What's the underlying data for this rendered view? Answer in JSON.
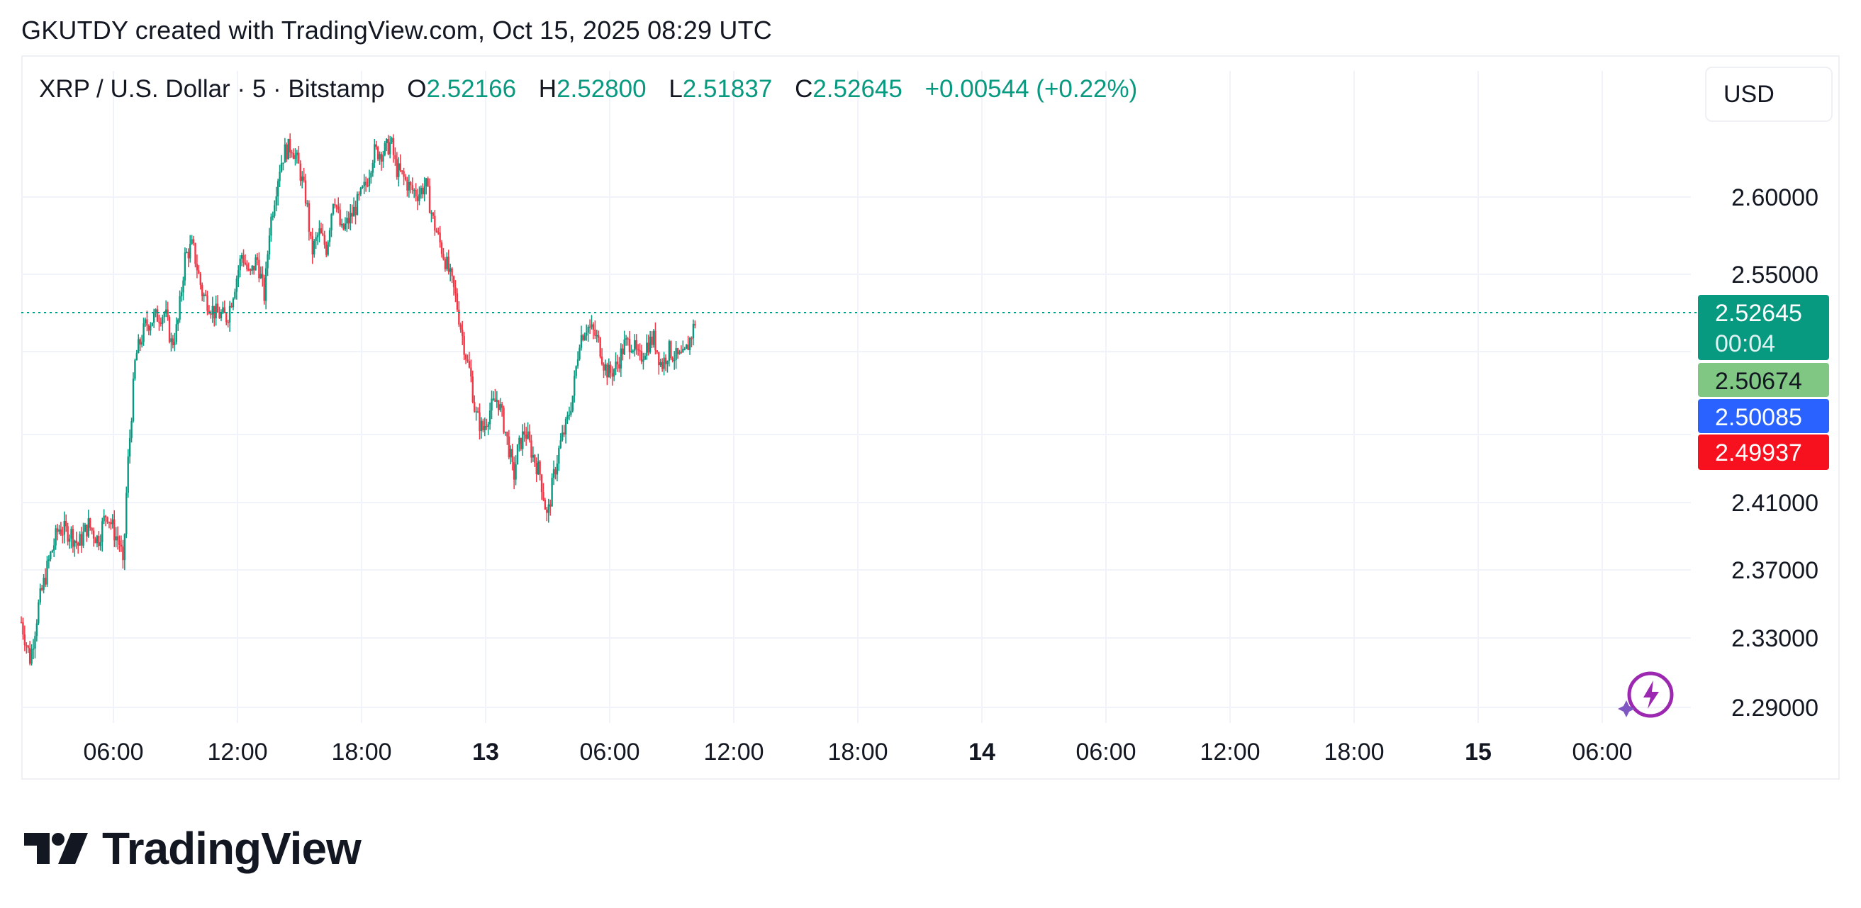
{
  "header": {
    "text": "GKUTDY created with TradingView.com, Oct 15, 2025 08:29 UTC"
  },
  "symbol": {
    "title": "XRP / U.S. Dollar · 5 · Bitstamp",
    "open_label": "O",
    "open": "2.52166",
    "high_label": "H",
    "high": "2.52800",
    "low_label": "L",
    "low": "2.51837",
    "close_label": "C",
    "close": "2.52645",
    "change": "+0.00544 (+0.22%)"
  },
  "currency_button": "USD",
  "brand": {
    "name": "TradingView"
  },
  "colors": {
    "up": "#089981",
    "down": "#f23645",
    "grid": "#f0f3fa",
    "label_green": "#089981",
    "label_lightgreen": "#81c784",
    "label_blue": "#2962ff",
    "label_red": "#f7101d"
  },
  "chart_data": {
    "type": "candlestick",
    "interval": "5",
    "y_axis_ticks": [
      "2.29000",
      "2.33000",
      "2.37000",
      "2.41000",
      "2.55000",
      "2.60000"
    ],
    "x_axis_ticks": [
      "06:00",
      "12:00",
      "18:00",
      "13",
      "06:00",
      "12:00",
      "18:00",
      "14",
      "06:00",
      "12:00",
      "18:00",
      "15",
      "06:00"
    ],
    "x_axis_bold": [
      "13",
      "14",
      "15"
    ],
    "price_labels": [
      {
        "value": "2.52645",
        "sub": "00:04",
        "color": "#089981"
      },
      {
        "value": "2.50674",
        "color": "#81c784"
      },
      {
        "value": "2.50085",
        "color": "#2962ff"
      },
      {
        "value": "2.49937",
        "color": "#f7101d"
      }
    ],
    "last_price": 2.52645,
    "price_path": [
      [
        0,
        2.34
      ],
      [
        0.018,
        2.318
      ],
      [
        0.035,
        2.35
      ],
      [
        0.055,
        2.375
      ],
      [
        0.075,
        2.395
      ],
      [
        0.1,
        2.392
      ],
      [
        0.115,
        2.385
      ],
      [
        0.135,
        2.397
      ],
      [
        0.155,
        2.388
      ],
      [
        0.172,
        2.405
      ],
      [
        0.188,
        2.392
      ],
      [
        0.2,
        2.385
      ],
      [
        0.205,
        2.37
      ],
      [
        0.214,
        2.43
      ],
      [
        0.23,
        2.5
      ],
      [
        0.25,
        2.52
      ],
      [
        0.268,
        2.525
      ],
      [
        0.29,
        2.528
      ],
      [
        0.303,
        2.508
      ],
      [
        0.315,
        2.52
      ],
      [
        0.33,
        2.563
      ],
      [
        0.345,
        2.57
      ],
      [
        0.365,
        2.54
      ],
      [
        0.39,
        2.528
      ],
      [
        0.415,
        2.525
      ],
      [
        0.43,
        2.545
      ],
      [
        0.445,
        2.565
      ],
      [
        0.46,
        2.55
      ],
      [
        0.475,
        2.562
      ],
      [
        0.49,
        2.538
      ],
      [
        0.5,
        2.58
      ],
      [
        0.52,
        2.618
      ],
      [
        0.53,
        2.628
      ],
      [
        0.545,
        2.632
      ],
      [
        0.56,
        2.618
      ],
      [
        0.575,
        2.597
      ],
      [
        0.585,
        2.565
      ],
      [
        0.6,
        2.578
      ],
      [
        0.615,
        2.568
      ],
      [
        0.63,
        2.603
      ],
      [
        0.645,
        2.578
      ],
      [
        0.665,
        2.588
      ],
      [
        0.68,
        2.598
      ],
      [
        0.695,
        2.608
      ],
      [
        0.71,
        2.628
      ],
      [
        0.73,
        2.628
      ],
      [
        0.745,
        2.634
      ],
      [
        0.755,
        2.618
      ],
      [
        0.77,
        2.612
      ],
      [
        0.785,
        2.605
      ],
      [
        0.8,
        2.602
      ],
      [
        0.815,
        2.608
      ],
      [
        0.83,
        2.585
      ],
      [
        0.845,
        2.57
      ],
      [
        0.86,
        2.555
      ],
      [
        0.875,
        2.538
      ],
      [
        0.885,
        2.52
      ],
      [
        0.9,
        2.495
      ],
      [
        0.905,
        2.49
      ],
      [
        0.915,
        2.465
      ],
      [
        0.93,
        2.455
      ],
      [
        0.945,
        2.468
      ],
      [
        0.96,
        2.475
      ],
      [
        0.975,
        2.455
      ],
      [
        0.985,
        2.44
      ],
      [
        0.992,
        2.425
      ],
      [
        1.0,
        2.442
      ],
      [
        1.015,
        2.455
      ],
      [
        1.03,
        2.44
      ],
      [
        1.045,
        2.428
      ],
      [
        1.06,
        2.4
      ],
      [
        1.072,
        2.425
      ],
      [
        1.085,
        2.445
      ],
      [
        1.1,
        2.46
      ],
      [
        1.112,
        2.478
      ],
      [
        1.125,
        2.512
      ],
      [
        1.14,
        2.52
      ],
      [
        1.155,
        2.515
      ],
      [
        1.165,
        2.508
      ],
      [
        1.175,
        2.495
      ],
      [
        1.185,
        2.49
      ],
      [
        1.2,
        2.495
      ],
      [
        1.215,
        2.508
      ],
      [
        1.23,
        2.51
      ],
      [
        1.245,
        2.498
      ],
      [
        1.26,
        2.508
      ],
      [
        1.275,
        2.512
      ],
      [
        1.29,
        2.495
      ],
      [
        1.305,
        2.505
      ],
      [
        1.32,
        2.5
      ],
      [
        1.335,
        2.5
      ],
      [
        1.348,
        2.512
      ],
      [
        1.36,
        2.525
      ]
    ]
  }
}
